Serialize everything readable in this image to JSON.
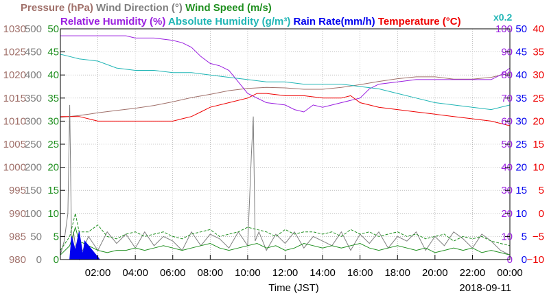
{
  "chart_data": {
    "type": "line",
    "title_lines": [
      [
        {
          "key": "pressure",
          "text": "Pressure (hPa)",
          "color": "#a0706a"
        },
        {
          "key": "wind_direction",
          "text": "Wind Direction (°)",
          "color": "#7f7f7f"
        },
        {
          "key": "wind_speed",
          "text": "Wind Speed (m/s)",
          "color": "#1f8f1f"
        }
      ],
      [
        {
          "key": "relative_humidity",
          "text": "Relative Humidity (%)",
          "color": "#9a1fe0"
        },
        {
          "key": "absolute_humidity",
          "text": "Absolute Humidity (g/m³)",
          "color": "#1fb5b5"
        },
        {
          "key": "rain_rate",
          "text": "Rain Rate(mm/h)",
          "color": "#0000ee"
        },
        {
          "key": "temperature",
          "text": "Temperature (°C)",
          "color": "#ee0000"
        }
      ]
    ],
    "ah_scale_label": "x0.2",
    "xlabel": "Time (JST)",
    "date_label": "2018-09-11",
    "x_range_hours": [
      0,
      24
    ],
    "x_ticks": [
      {
        "h": 2,
        "label": "02:00"
      },
      {
        "h": 4,
        "label": "04:00"
      },
      {
        "h": 6,
        "label": "06:00"
      },
      {
        "h": 8,
        "label": "08:00"
      },
      {
        "h": 10,
        "label": "10:00"
      },
      {
        "h": 12,
        "label": "12:00"
      },
      {
        "h": 14,
        "label": "14:00"
      },
      {
        "h": 16,
        "label": "16:00"
      },
      {
        "h": 18,
        "label": "18:00"
      },
      {
        "h": 20,
        "label": "20:00"
      },
      {
        "h": 22,
        "label": "22:00"
      },
      {
        "h": 24,
        "label": "00:00"
      }
    ],
    "grid": true,
    "axes": {
      "pressure": {
        "side": "left",
        "color": "#a0706a",
        "range": [
          980,
          1030
        ],
        "ticks": [
          "980",
          "985",
          "990",
          "995",
          "1000",
          "1005",
          "1010",
          "1015",
          "1020",
          "1025",
          "1030"
        ]
      },
      "wind_direction": {
        "side": "left",
        "color": "#7f7f7f",
        "range": [
          0,
          500
        ],
        "ticks": [
          "0",
          "50",
          "100",
          "150",
          "200",
          "250",
          "300",
          "350",
          "400",
          "450",
          "500"
        ]
      },
      "wind_speed": {
        "side": "left",
        "color": "#1f8f1f",
        "range": [
          0,
          50
        ],
        "ticks": [
          "0",
          "5",
          "10",
          "15",
          "20",
          "25",
          "30",
          "35",
          "40",
          "45",
          "50"
        ]
      },
      "humidity": {
        "side": "right",
        "color": "#9a1fe0",
        "range": [
          0,
          100
        ],
        "ticks": [
          "0",
          "10",
          "20",
          "30",
          "40",
          "50",
          "60",
          "70",
          "80",
          "90",
          "100"
        ]
      },
      "rain_rate": {
        "side": "right",
        "color": "#0000ee",
        "range": [
          0,
          50
        ],
        "ticks": [
          "0",
          "5",
          "10",
          "15",
          "20",
          "25",
          "30",
          "35",
          "40",
          "45",
          "50"
        ]
      },
      "temperature": {
        "side": "right",
        "color": "#ee0000",
        "range": [
          -10,
          40
        ],
        "ticks": [
          "−10",
          "−5",
          "0",
          "5",
          "10",
          "15",
          "20",
          "25",
          "30",
          "35",
          "40"
        ]
      }
    },
    "series": [
      {
        "name": "Pressure (hPa)",
        "axis": "pressure",
        "color": "#a0706a",
        "x": [
          0,
          1,
          2,
          3,
          4,
          5,
          6,
          7,
          8,
          9,
          10,
          11,
          12,
          13,
          14,
          15,
          16,
          17,
          18,
          19,
          20,
          21,
          22,
          23,
          24
        ],
        "y": [
          1010.8,
          1011.2,
          1011.8,
          1012.3,
          1012.8,
          1013.4,
          1014.2,
          1015.1,
          1015.8,
          1016.6,
          1017.1,
          1017.3,
          1017.2,
          1016.9,
          1016.9,
          1017.3,
          1017.9,
          1018.6,
          1019.2,
          1019.6,
          1019.6,
          1019.1,
          1019.1,
          1019.5,
          1020.4
        ]
      },
      {
        "name": "Relative Humidity (%)",
        "axis": "humidity",
        "color": "#9a1fe0",
        "x": [
          0,
          1,
          2,
          3,
          3.5,
          4,
          5,
          6,
          6.5,
          7,
          7.5,
          8,
          8.5,
          9,
          9.5,
          10,
          11,
          12,
          12.5,
          13,
          13.5,
          14,
          14.5,
          15,
          15.5,
          16,
          16.5,
          17,
          18,
          19,
          20,
          21,
          22,
          23,
          23.5,
          24
        ],
        "y": [
          97,
          97,
          97,
          97,
          97,
          96,
          96,
          95,
          94,
          92,
          88,
          85,
          84,
          82,
          77,
          72,
          68,
          67,
          65,
          64,
          67,
          66,
          67,
          68,
          69,
          70,
          74,
          76,
          77,
          78,
          78,
          78,
          78,
          78,
          80,
          83
        ]
      },
      {
        "name": "Absolute Humidity (g/m³)",
        "axis": "humidity",
        "color": "#1fb5b5",
        "x": [
          0,
          0.5,
          1,
          2,
          3,
          4,
          5,
          6,
          7,
          8,
          9,
          10,
          11,
          12,
          13,
          14,
          15,
          16,
          17,
          18,
          19,
          20,
          21,
          22,
          23,
          24
        ],
        "y": [
          89,
          88,
          87,
          86,
          83,
          82,
          82,
          81,
          81,
          80,
          79,
          78,
          77,
          77,
          76,
          76,
          76,
          75,
          74,
          72,
          70,
          68,
          67,
          66,
          65,
          67
        ]
      },
      {
        "name": "Temperature (°C)",
        "axis": "temperature",
        "color": "#ee0000",
        "x": [
          0,
          1,
          1.5,
          2,
          3,
          4,
          5,
          6,
          6.5,
          7,
          7.5,
          8,
          9,
          10,
          10.5,
          11,
          12,
          13,
          14,
          15,
          15.5,
          16,
          17,
          18,
          19,
          20,
          21,
          22,
          23,
          24
        ],
        "y": [
          21,
          21,
          20.5,
          20,
          20,
          20,
          20,
          20,
          20.5,
          21,
          22,
          23,
          24,
          25,
          26,
          26,
          25.5,
          25.5,
          25,
          25,
          25.5,
          24,
          23,
          22.5,
          22,
          21.5,
          21,
          20.5,
          20,
          19
        ]
      },
      {
        "name": "Wind Direction (°)",
        "axis": "wind_direction",
        "color": "#7f7f7f",
        "x": [
          0,
          0.2,
          0.4,
          0.5,
          0.6,
          0.7,
          0.8,
          1,
          1.5,
          2,
          2.5,
          3,
          3.5,
          4,
          4.5,
          5,
          5.5,
          6,
          6.5,
          7,
          7.5,
          8,
          8.5,
          9,
          9.5,
          10,
          10.2,
          10.3,
          10.4,
          10.6,
          11,
          11.5,
          12,
          12.5,
          13,
          13.5,
          14,
          14.5,
          15,
          15.5,
          16,
          16.5,
          17,
          17.5,
          18,
          18.5,
          19,
          19.5,
          20,
          20.5,
          21,
          21.5,
          22,
          22.5,
          23,
          23.5,
          24
        ],
        "y": [
          10,
          40,
          100,
          335,
          20,
          60,
          30,
          0,
          50,
          20,
          60,
          35,
          55,
          25,
          60,
          30,
          50,
          40,
          20,
          60,
          30,
          55,
          45,
          25,
          60,
          30,
          230,
          310,
          40,
          60,
          20,
          55,
          35,
          60,
          25,
          50,
          40,
          30,
          60,
          20,
          55,
          35,
          60,
          25,
          50,
          40,
          60,
          20,
          50,
          30,
          60,
          45,
          25,
          55,
          40,
          20,
          10
        ]
      },
      {
        "name": "Wind Speed (m/s)",
        "axis": "wind_speed",
        "color": "#1f8f1f",
        "x": [
          0,
          0.5,
          0.8,
          1,
          1.5,
          2,
          2.5,
          3,
          3.5,
          4,
          4.5,
          5,
          5.5,
          6,
          6.5,
          7,
          7.5,
          8,
          8.5,
          9,
          9.5,
          10,
          10.5,
          11,
          11.5,
          12,
          12.5,
          13,
          13.5,
          14,
          14.5,
          15,
          15.5,
          16,
          16.5,
          17,
          17.5,
          18,
          18.5,
          19,
          19.5,
          20,
          20.5,
          21,
          21.5,
          22,
          22.5,
          23,
          23.5,
          24
        ],
        "y": [
          1,
          3,
          7,
          4,
          3,
          2,
          1.5,
          2,
          2,
          2.5,
          2,
          2.5,
          3,
          2.5,
          2,
          2.5,
          3,
          3.5,
          2.5,
          2,
          2.5,
          3,
          3.5,
          2.5,
          3,
          2,
          2.5,
          3.5,
          3,
          2.5,
          3,
          2.5,
          3,
          3.5,
          2.5,
          2,
          2.5,
          3,
          2.5,
          2,
          2.5,
          1.5,
          2,
          2.5,
          2,
          2.5,
          1.5,
          2,
          1.5,
          1
        ]
      },
      {
        "name": "Wind Speed (m/s)",
        "axis": "wind_speed",
        "color": "#1f8f1f",
        "dashed": true,
        "x": [
          0,
          0.5,
          0.8,
          1,
          1.5,
          2,
          2.5,
          3,
          3.5,
          4,
          4.5,
          5,
          5.5,
          6,
          6.5,
          7,
          7.5,
          8,
          8.5,
          9,
          9.5,
          10,
          10.5,
          11,
          11.5,
          12,
          12.5,
          13,
          13.5,
          14,
          14.5,
          15,
          15.5,
          16,
          16.5,
          17,
          17.5,
          18,
          18.5,
          19,
          19.5,
          20,
          20.5,
          21,
          21.5,
          22,
          22.5,
          23,
          23.5,
          24
        ],
        "y": [
          2,
          5,
          10,
          6,
          6,
          7.5,
          5,
          4.5,
          5.5,
          6,
          5,
          5.5,
          6,
          5,
          4.5,
          5.5,
          6,
          6.5,
          5,
          5.5,
          6,
          7,
          6.5,
          6,
          5,
          6.5,
          5.5,
          6,
          6,
          5.5,
          6,
          5,
          6.5,
          5.5,
          6,
          5,
          5.5,
          6,
          5,
          5.5,
          4.5,
          5,
          5.5,
          4,
          5,
          4.5,
          5,
          4,
          3.5,
          3
        ]
      },
      {
        "name": "Rain Rate(mm/h)",
        "axis": "rain_rate",
        "color": "#0000ee",
        "fill": true,
        "x": [
          0,
          0.5,
          0.6,
          0.8,
          1,
          1.2,
          1.3,
          1.5,
          1.7,
          2,
          2.1,
          24
        ],
        "y": [
          0,
          0,
          5,
          2,
          6,
          1,
          4,
          3,
          2,
          0.5,
          0,
          0
        ]
      }
    ]
  }
}
